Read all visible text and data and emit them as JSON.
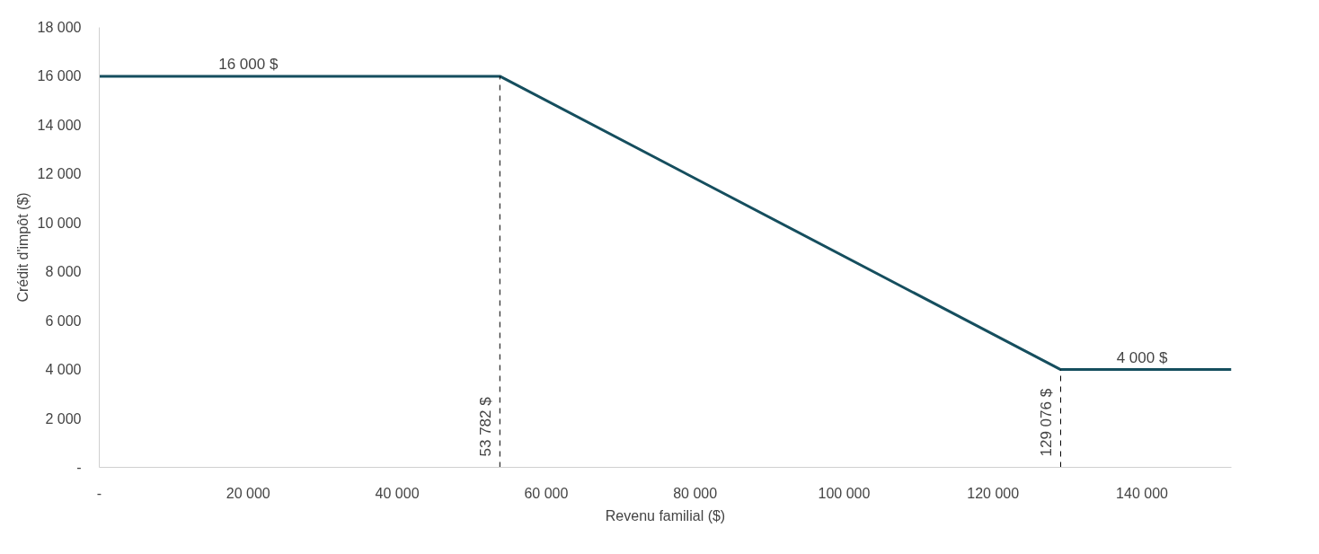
{
  "chart_data": {
    "type": "line",
    "xlabel": "Revenu familial ($)",
    "ylabel": "Crédit d'impôt ($)",
    "x": [
      0,
      53782,
      129076,
      152000
    ],
    "series": [
      {
        "color": "#154e5e",
        "values": [
          16000,
          16000,
          4000,
          4000
        ]
      }
    ],
    "xlim": [
      0,
      152000
    ],
    "ylim": [
      0,
      18000
    ],
    "xticks": [
      {
        "value": 0,
        "label": "-"
      },
      {
        "value": 20000,
        "label": "20 000"
      },
      {
        "value": 40000,
        "label": "40 000"
      },
      {
        "value": 60000,
        "label": "60 000"
      },
      {
        "value": 80000,
        "label": "80 000"
      },
      {
        "value": 100000,
        "label": "100 000"
      },
      {
        "value": 120000,
        "label": "120 000"
      },
      {
        "value": 140000,
        "label": "140 000"
      }
    ],
    "yticks": [
      {
        "value": 0,
        "label": "-"
      },
      {
        "value": 2000,
        "label": "2 000"
      },
      {
        "value": 4000,
        "label": "4 000"
      },
      {
        "value": 6000,
        "label": "6 000"
      },
      {
        "value": 8000,
        "label": "8 000"
      },
      {
        "value": 10000,
        "label": "10 000"
      },
      {
        "value": 12000,
        "label": "12 000"
      },
      {
        "value": 14000,
        "label": "14 000"
      },
      {
        "value": 16000,
        "label": "16 000"
      },
      {
        "value": 18000,
        "label": "18 000"
      }
    ],
    "ref_lines": [
      {
        "axis": "x",
        "value": 53782,
        "label": "53 782 $",
        "line_style": "dashed",
        "color": "#000000"
      },
      {
        "axis": "x",
        "value": 129076,
        "label": "129 076 $",
        "line_style": "dashed",
        "color": "#000000"
      }
    ],
    "annotations": [
      {
        "text": "16 000 $",
        "x": 20000,
        "y": 16000
      },
      {
        "text": "4 000 $",
        "x": 140000,
        "y": 4000
      }
    ],
    "grid": false,
    "marker": "none",
    "line_style": "solid"
  }
}
